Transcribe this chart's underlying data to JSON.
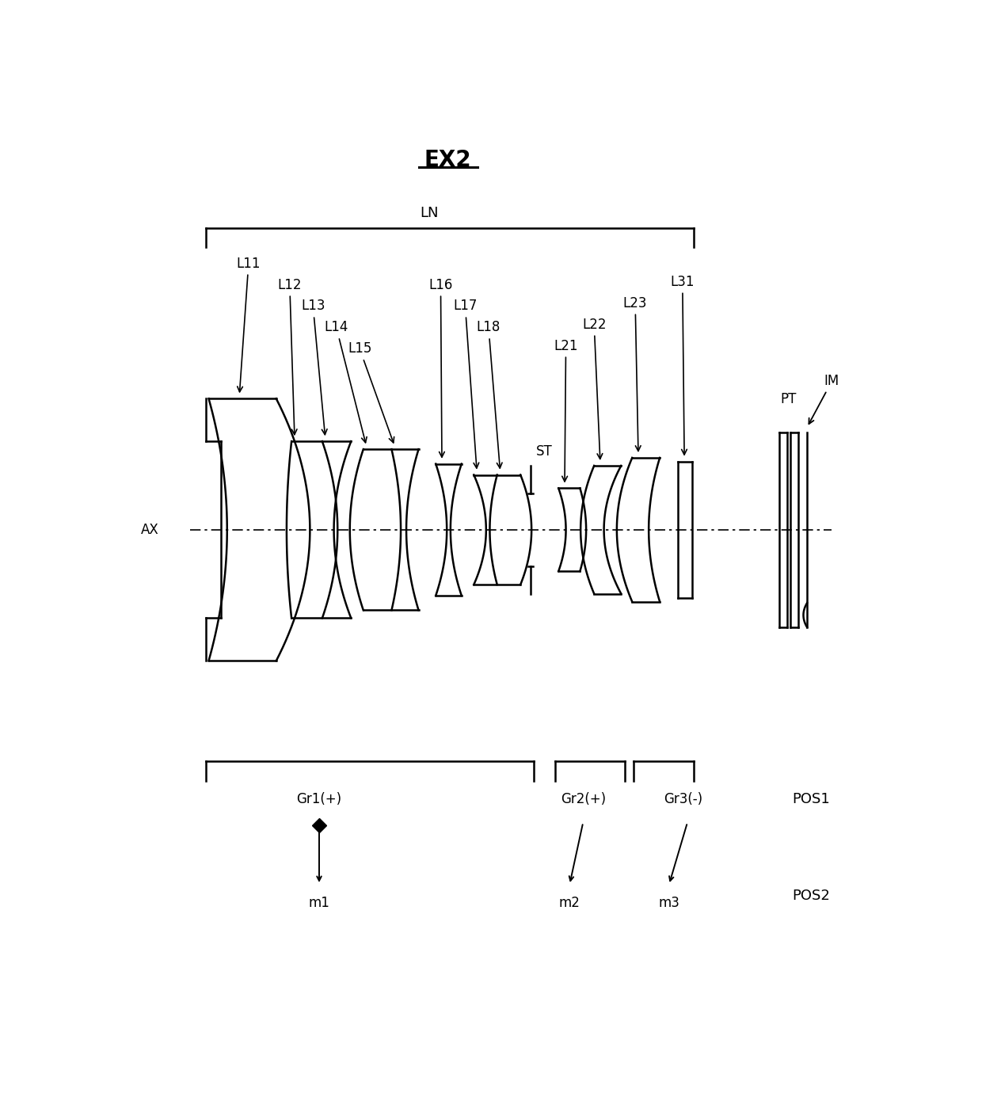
{
  "title": "EX2",
  "bg_color": "#ffffff",
  "lc": "#000000",
  "lw": 1.8,
  "ax_y": 7.6,
  "figw": 12.4,
  "figh": 14.09,
  "xlim": [
    0,
    12.4
  ],
  "ylim": [
    0,
    14.09
  ]
}
